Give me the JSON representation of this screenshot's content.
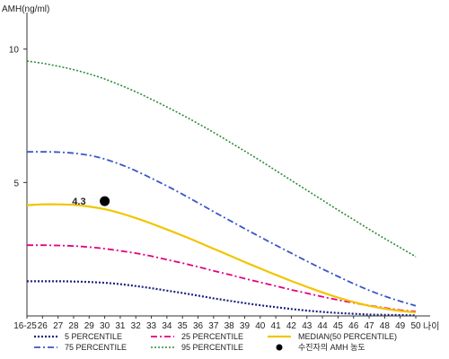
{
  "chart_data": {
    "type": "line",
    "ylabel": "AMH(ng/ml)",
    "xlabel": "나이",
    "ylim": [
      0,
      11
    ],
    "y_ticks": [
      5,
      10
    ],
    "x_tick_labels": [
      "16-25",
      "26",
      "27",
      "28",
      "29",
      "30",
      "31",
      "32",
      "33",
      "34",
      "35",
      "36",
      "37",
      "38",
      "39",
      "40",
      "41",
      "42",
      "43",
      "44",
      "45",
      "46",
      "47",
      "48",
      "49",
      "50"
    ],
    "series": [
      {
        "name": "5 PERCENTILE",
        "color": "#1a237e",
        "dash": "2,2",
        "width": 2.2,
        "values": [
          1.3,
          1.3,
          1.3,
          1.29,
          1.27,
          1.24,
          1.19,
          1.12,
          1.04,
          0.95,
          0.86,
          0.76,
          0.66,
          0.57,
          0.48,
          0.4,
          0.33,
          0.26,
          0.2,
          0.15,
          0.11,
          0.08,
          0.05,
          0.04,
          0.03,
          0.02
        ]
      },
      {
        "name": "25 PERCENTILE",
        "color": "#e6007e",
        "dash": "7,3,2,3",
        "width": 1.8,
        "values": [
          2.65,
          2.65,
          2.64,
          2.62,
          2.58,
          2.52,
          2.44,
          2.35,
          2.24,
          2.11,
          1.98,
          1.84,
          1.69,
          1.55,
          1.4,
          1.26,
          1.12,
          0.98,
          0.85,
          0.72,
          0.6,
          0.49,
          0.39,
          0.3,
          0.22,
          0.16
        ]
      },
      {
        "name": "75 PERCENTILE",
        "color": "#3a56c8",
        "dash": "7,3,2,3",
        "width": 1.8,
        "values": [
          6.15,
          6.15,
          6.14,
          6.1,
          6.02,
          5.88,
          5.68,
          5.44,
          5.16,
          4.87,
          4.56,
          4.24,
          3.91,
          3.59,
          3.27,
          2.96,
          2.65,
          2.35,
          2.05,
          1.76,
          1.48,
          1.21,
          0.96,
          0.74,
          0.55,
          0.38
        ]
      },
      {
        "name": "95 PERCENTILE",
        "color": "#2e8b3a",
        "dash": "2,2",
        "width": 1.6,
        "values": [
          9.55,
          9.47,
          9.36,
          9.23,
          9.07,
          8.88,
          8.65,
          8.4,
          8.12,
          7.83,
          7.53,
          7.21,
          6.88,
          6.53,
          6.18,
          5.82,
          5.45,
          5.08,
          4.71,
          4.34,
          3.97,
          3.61,
          3.25,
          2.9,
          2.56,
          2.22
        ]
      },
      {
        "name": "MEDIAN(50 PERCENTILE)",
        "color": "#f2c400",
        "dash": "",
        "width": 2.2,
        "values": [
          4.15,
          4.18,
          4.18,
          4.16,
          4.1,
          4.0,
          3.85,
          3.67,
          3.46,
          3.24,
          3.01,
          2.77,
          2.52,
          2.27,
          2.02,
          1.78,
          1.54,
          1.31,
          1.09,
          0.88,
          0.69,
          0.52,
          0.38,
          0.27,
          0.19,
          0.13
        ]
      }
    ],
    "patient_point": {
      "x": "30",
      "y": 4.3,
      "label": "4.3",
      "legend": "수진자의 AMH 농도",
      "color": "#000000"
    },
    "legend_order": [
      "5 PERCENTILE",
      "25 PERCENTILE",
      "MEDIAN(50 PERCENTILE)",
      "75 PERCENTILE",
      "95 PERCENTILE",
      "수진자의 AMH 농도"
    ],
    "grid": false,
    "legend_position": "bottom"
  }
}
